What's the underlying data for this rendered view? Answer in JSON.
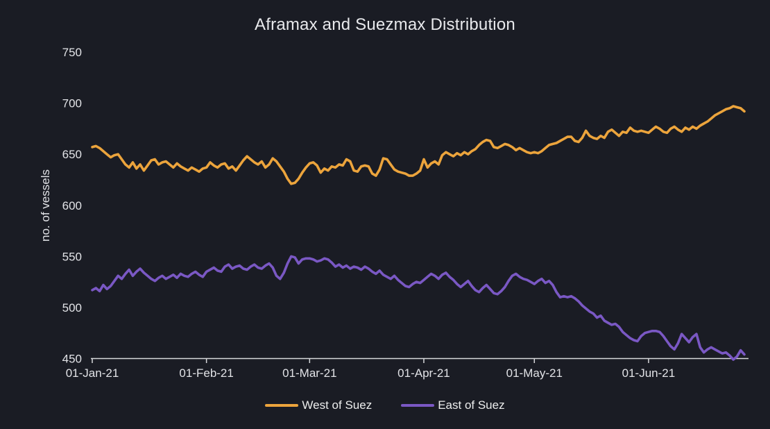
{
  "chart": {
    "title": "Aframax and Suezmax Distribution",
    "ylabel": "no. of vessels"
  },
  "colors": {
    "background": "#1a1c24",
    "text": "#e2e3e7",
    "axis_line": "#d8d9dc",
    "west_of_suez": "#eca43c",
    "east_of_suez": "#7a58c4"
  },
  "chart_data": {
    "type": "line",
    "title": "Aframax and Suezmax Distribution",
    "xlabel": "",
    "ylabel": "no. of vessels",
    "ylim": [
      450,
      750
    ],
    "yticks": [
      450,
      500,
      550,
      600,
      650,
      700,
      750
    ],
    "grid": false,
    "legend_position": "bottom",
    "x_start": "01-Jan-21",
    "x_frequency": "daily",
    "xtick_labels": [
      "01-Jan-21",
      "01-Feb-21",
      "01-Mar-21",
      "01-Apr-21",
      "01-May-21",
      "01-Jun-21"
    ],
    "xtick_day_index": [
      0,
      31,
      59,
      90,
      120,
      151
    ],
    "series": [
      {
        "name": "West of Suez",
        "color": "#eca43c",
        "values": [
          657,
          658,
          656,
          653,
          650,
          647,
          649,
          650,
          645,
          640,
          637,
          642,
          636,
          640,
          634,
          639,
          644,
          645,
          640,
          642,
          643,
          640,
          637,
          641,
          638,
          636,
          634,
          637,
          635,
          633,
          636,
          637,
          642,
          639,
          637,
          640,
          641,
          636,
          638,
          634,
          639,
          644,
          648,
          645,
          642,
          640,
          643,
          637,
          640,
          646,
          643,
          638,
          633,
          626,
          621,
          622,
          626,
          632,
          637,
          641,
          642,
          639,
          632,
          636,
          634,
          638,
          637,
          640,
          639,
          645,
          643,
          634,
          633,
          638,
          639,
          638,
          631,
          629,
          635,
          646,
          645,
          640,
          635,
          633,
          632,
          631,
          629,
          629,
          631,
          634,
          645,
          637,
          641,
          643,
          640,
          649,
          652,
          650,
          648,
          651,
          649,
          652,
          650,
          653,
          655,
          659,
          662,
          664,
          663,
          657,
          656,
          658,
          660,
          659,
          657,
          654,
          656,
          654,
          652,
          651,
          652,
          651,
          653,
          656,
          659,
          660,
          661,
          663,
          665,
          667,
          667,
          663,
          662,
          666,
          673,
          668,
          666,
          665,
          668,
          666,
          672,
          674,
          671,
          668,
          672,
          671,
          676,
          673,
          672,
          673,
          672,
          671,
          674,
          677,
          675,
          672,
          671,
          675,
          677,
          674,
          672,
          676,
          674,
          677,
          675,
          678,
          680,
          682,
          685,
          688,
          690,
          692,
          694,
          695,
          697,
          696,
          695,
          692
        ]
      },
      {
        "name": "East of Suez",
        "color": "#7a58c4",
        "values": [
          517,
          519,
          516,
          522,
          518,
          521,
          526,
          531,
          528,
          533,
          537,
          531,
          535,
          538,
          534,
          531,
          528,
          526,
          529,
          531,
          528,
          530,
          532,
          529,
          533,
          531,
          530,
          533,
          535,
          532,
          530,
          535,
          537,
          539,
          536,
          535,
          540,
          542,
          538,
          540,
          541,
          538,
          537,
          540,
          542,
          539,
          538,
          541,
          543,
          539,
          531,
          528,
          534,
          543,
          550,
          549,
          543,
          547,
          548,
          548,
          547,
          545,
          546,
          548,
          547,
          544,
          540,
          542,
          539,
          541,
          538,
          540,
          539,
          537,
          540,
          538,
          535,
          533,
          536,
          532,
          530,
          528,
          531,
          527,
          524,
          521,
          520,
          523,
          525,
          524,
          527,
          530,
          533,
          531,
          528,
          532,
          534,
          530,
          527,
          523,
          520,
          523,
          526,
          521,
          517,
          515,
          519,
          522,
          518,
          514,
          513,
          516,
          520,
          526,
          531,
          533,
          530,
          528,
          527,
          525,
          523,
          526,
          528,
          524,
          526,
          522,
          515,
          510,
          511,
          510,
          511,
          509,
          506,
          502,
          499,
          496,
          494,
          490,
          492,
          487,
          485,
          483,
          484,
          481,
          476,
          473,
          470,
          468,
          467,
          472,
          475,
          476,
          477,
          477,
          476,
          472,
          467,
          462,
          459,
          465,
          474,
          470,
          466,
          471,
          474,
          461,
          456,
          459,
          461,
          459,
          457,
          455,
          456,
          453,
          449,
          452,
          458,
          454
        ]
      }
    ]
  }
}
